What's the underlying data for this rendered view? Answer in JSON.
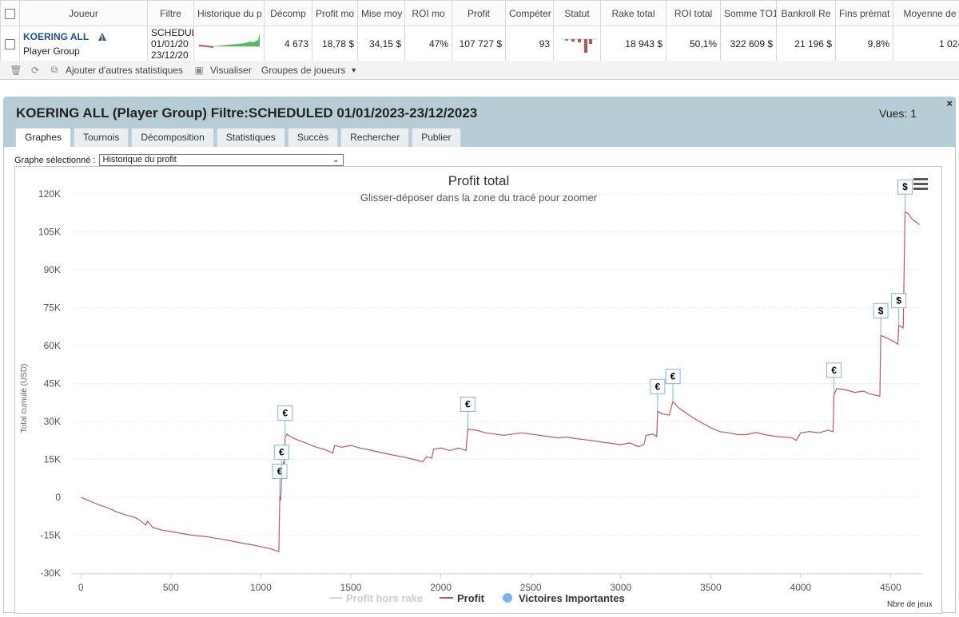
{
  "table": {
    "headers": [
      "Joueur",
      "Filtre",
      "Historique du p",
      "Décomp",
      "Profit mo",
      "Mise moy",
      "ROI mo",
      "Profit",
      "Compéter",
      "Statut",
      "Rake total",
      "ROI total",
      "Somme TO1",
      "Bankroll Re",
      "Fins prémat",
      "Moyenne de"
    ],
    "row": {
      "player_name": "KOERING ALL",
      "player_group": "Player Group",
      "filter_lines": [
        "SCHEDUL",
        "01/01/20",
        "23/12/20"
      ],
      "cells": [
        "4 673",
        "18,78 $",
        "34,15 $",
        "47%",
        "107 727 $",
        "93",
        "18 943 $",
        "50,1%",
        "322 609 $",
        "21 196 $",
        "9,8%",
        "1 024"
      ],
      "remove": "x"
    }
  },
  "toolbar": {
    "add_stats": "Ajouter d'autres statistiques",
    "visualize": "Visualiser",
    "groups": "Groupes de joueurs"
  },
  "panel": {
    "title": "KOERING ALL (Player Group) Filtre:SCHEDULED 01/01/2023-23/12/2023",
    "views": "Vues: 1",
    "close": "×",
    "tabs": [
      "Graphes",
      "Tournois",
      "Décomposition",
      "Statistiques",
      "Succès",
      "Rechercher",
      "Publier"
    ],
    "graph_select_label": "Graphe sélectionné :",
    "graph_select_value": "Historique du profit"
  },
  "colors": {
    "profit": "#b85c5c",
    "profit_no_rake": "#d6d6d6",
    "victory": "#7cb5ec",
    "spark_green": "#5cb85c",
    "spark_red": "#c0504d"
  },
  "chart_data": {
    "type": "line",
    "title": "Profit total",
    "subtitle": "Glisser-déposer dans la zone du tracé pour zoomer",
    "xlabel": "Nbre de jeux",
    "ylabel": "Total cumulé (USD)",
    "xlim": [
      -50,
      4680
    ],
    "ylim": [
      -30000,
      120000
    ],
    "x_ticks": [
      0,
      500,
      1000,
      1500,
      2000,
      2500,
      3000,
      3500,
      4000,
      4500
    ],
    "y_ticks": [
      {
        "v": -30000,
        "label": "-30K"
      },
      {
        "v": -15000,
        "label": "-15K"
      },
      {
        "v": 0,
        "label": "0"
      },
      {
        "v": 15000,
        "label": "15K"
      },
      {
        "v": 30000,
        "label": "30K"
      },
      {
        "v": 45000,
        "label": "45K"
      },
      {
        "v": 60000,
        "label": "60K"
      },
      {
        "v": 75000,
        "label": "75K"
      },
      {
        "v": 90000,
        "label": "90K"
      },
      {
        "v": 105000,
        "label": "105K"
      },
      {
        "v": 120000,
        "label": "120K"
      }
    ],
    "legend": [
      "Profit hors rake",
      "Profit",
      "Victoires Importantes"
    ],
    "series": [
      {
        "name": "Profit",
        "points": [
          [
            0,
            0
          ],
          [
            50,
            -1500
          ],
          [
            100,
            -3000
          ],
          [
            150,
            -4200
          ],
          [
            200,
            -5800
          ],
          [
            250,
            -7000
          ],
          [
            300,
            -8000
          ],
          [
            330,
            -9200
          ],
          [
            360,
            -11000
          ],
          [
            370,
            -9500
          ],
          [
            400,
            -12000
          ],
          [
            450,
            -13000
          ],
          [
            500,
            -13500
          ],
          [
            550,
            -14200
          ],
          [
            600,
            -14800
          ],
          [
            650,
            -15300
          ],
          [
            700,
            -15600
          ],
          [
            750,
            -16200
          ],
          [
            800,
            -16800
          ],
          [
            850,
            -17500
          ],
          [
            900,
            -18200
          ],
          [
            950,
            -18800
          ],
          [
            1000,
            -19500
          ],
          [
            1050,
            -20300
          ],
          [
            1100,
            -21500
          ],
          [
            1105,
            500
          ],
          [
            1110,
            -1200
          ],
          [
            1115,
            8000
          ],
          [
            1120,
            9800
          ],
          [
            1125,
            14000
          ],
          [
            1130,
            12500
          ],
          [
            1135,
            23500
          ],
          [
            1145,
            25000
          ],
          [
            1160,
            24200
          ],
          [
            1200,
            22800
          ],
          [
            1250,
            21500
          ],
          [
            1300,
            20000
          ],
          [
            1350,
            19000
          ],
          [
            1400,
            17500
          ],
          [
            1410,
            20500
          ],
          [
            1450,
            19800
          ],
          [
            1500,
            20500
          ],
          [
            1550,
            19500
          ],
          [
            1600,
            18800
          ],
          [
            1650,
            18000
          ],
          [
            1700,
            17200
          ],
          [
            1750,
            16500
          ],
          [
            1800,
            15800
          ],
          [
            1850,
            15000
          ],
          [
            1900,
            14000
          ],
          [
            1920,
            16000
          ],
          [
            1950,
            15500
          ],
          [
            1960,
            19000
          ],
          [
            2000,
            19500
          ],
          [
            2050,
            18500
          ],
          [
            2100,
            19500
          ],
          [
            2140,
            18500
          ],
          [
            2150,
            27000
          ],
          [
            2200,
            26500
          ],
          [
            2250,
            25500
          ],
          [
            2300,
            25000
          ],
          [
            2350,
            24500
          ],
          [
            2400,
            25000
          ],
          [
            2450,
            25500
          ],
          [
            2500,
            25000
          ],
          [
            2550,
            24500
          ],
          [
            2600,
            24000
          ],
          [
            2650,
            23500
          ],
          [
            2700,
            23800
          ],
          [
            2750,
            23200
          ],
          [
            2800,
            22800
          ],
          [
            2850,
            22300
          ],
          [
            2900,
            21800
          ],
          [
            2950,
            21300
          ],
          [
            3000,
            20800
          ],
          [
            3050,
            21500
          ],
          [
            3100,
            20000
          ],
          [
            3130,
            21000
          ],
          [
            3140,
            24500
          ],
          [
            3180,
            25000
          ],
          [
            3200,
            24000
          ],
          [
            3205,
            34000
          ],
          [
            3230,
            33000
          ],
          [
            3270,
            32500
          ],
          [
            3290,
            38000
          ],
          [
            3320,
            35500
          ],
          [
            3360,
            33500
          ],
          [
            3400,
            31500
          ],
          [
            3450,
            29500
          ],
          [
            3500,
            27500
          ],
          [
            3550,
            26000
          ],
          [
            3600,
            25500
          ],
          [
            3650,
            24800
          ],
          [
            3700,
            24800
          ],
          [
            3750,
            25600
          ],
          [
            3800,
            24800
          ],
          [
            3850,
            24200
          ],
          [
            3900,
            23800
          ],
          [
            3950,
            23600
          ],
          [
            3975,
            22500
          ],
          [
            4000,
            25500
          ],
          [
            4050,
            26000
          ],
          [
            4100,
            25500
          ],
          [
            4150,
            26500
          ],
          [
            4180,
            26000
          ],
          [
            4185,
            40500
          ],
          [
            4200,
            43000
          ],
          [
            4250,
            42500
          ],
          [
            4300,
            41500
          ],
          [
            4350,
            42000
          ],
          [
            4380,
            41000
          ],
          [
            4410,
            40500
          ],
          [
            4440,
            40000
          ],
          [
            4445,
            64000
          ],
          [
            4480,
            63000
          ],
          [
            4520,
            61500
          ],
          [
            4540,
            60500
          ],
          [
            4545,
            68000
          ],
          [
            4570,
            67000
          ],
          [
            4580,
            113000
          ],
          [
            4600,
            112000
          ],
          [
            4620,
            110000
          ],
          [
            4640,
            109000
          ],
          [
            4660,
            107800
          ]
        ]
      }
    ],
    "markers": [
      {
        "x": 1105,
        "y": 500,
        "label": "€"
      },
      {
        "x": 1115,
        "y": 8000,
        "label": "€"
      },
      {
        "x": 1135,
        "y": 23500,
        "label": "€"
      },
      {
        "x": 2150,
        "y": 27000,
        "label": "€"
      },
      {
        "x": 3205,
        "y": 34000,
        "label": "€"
      },
      {
        "x": 3290,
        "y": 38000,
        "label": "€"
      },
      {
        "x": 4185,
        "y": 40500,
        "label": "€"
      },
      {
        "x": 4445,
        "y": 64000,
        "label": "$"
      },
      {
        "x": 4545,
        "y": 68000,
        "label": "$"
      },
      {
        "x": 4580,
        "y": 113000,
        "label": "$"
      }
    ]
  }
}
